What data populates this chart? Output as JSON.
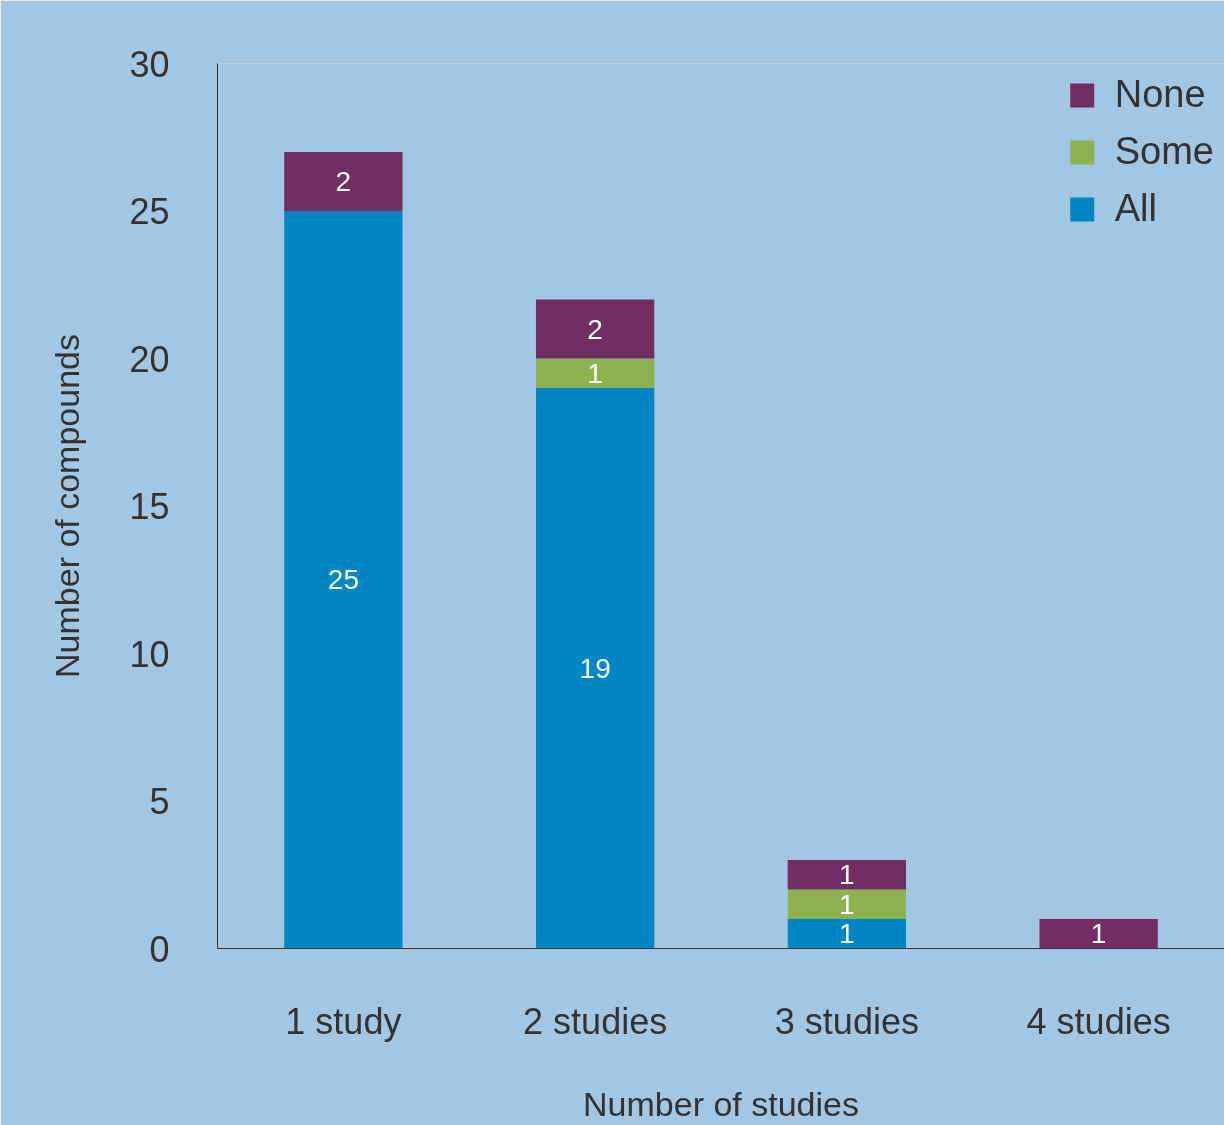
{
  "chart_data": {
    "type": "bar",
    "stacked": true,
    "xlabel": "Number of studies",
    "ylabel": "Number of compounds",
    "categories": [
      "1 study",
      "2 studies",
      "3 studies",
      "4 studies"
    ],
    "series": [
      {
        "name": "All",
        "color": "#0087c3",
        "values": [
          25,
          19,
          1,
          null
        ]
      },
      {
        "name": "Some",
        "color": "#8db350",
        "values": [
          null,
          1,
          1,
          null
        ]
      },
      {
        "name": "None",
        "color": "#722d62",
        "values": [
          2,
          2,
          1,
          1
        ]
      }
    ],
    "ylim": [
      0,
      30
    ],
    "yticks": [
      0,
      5,
      10,
      15,
      20,
      25,
      30
    ],
    "grid": false,
    "legend": "top right",
    "data_labels": true
  }
}
